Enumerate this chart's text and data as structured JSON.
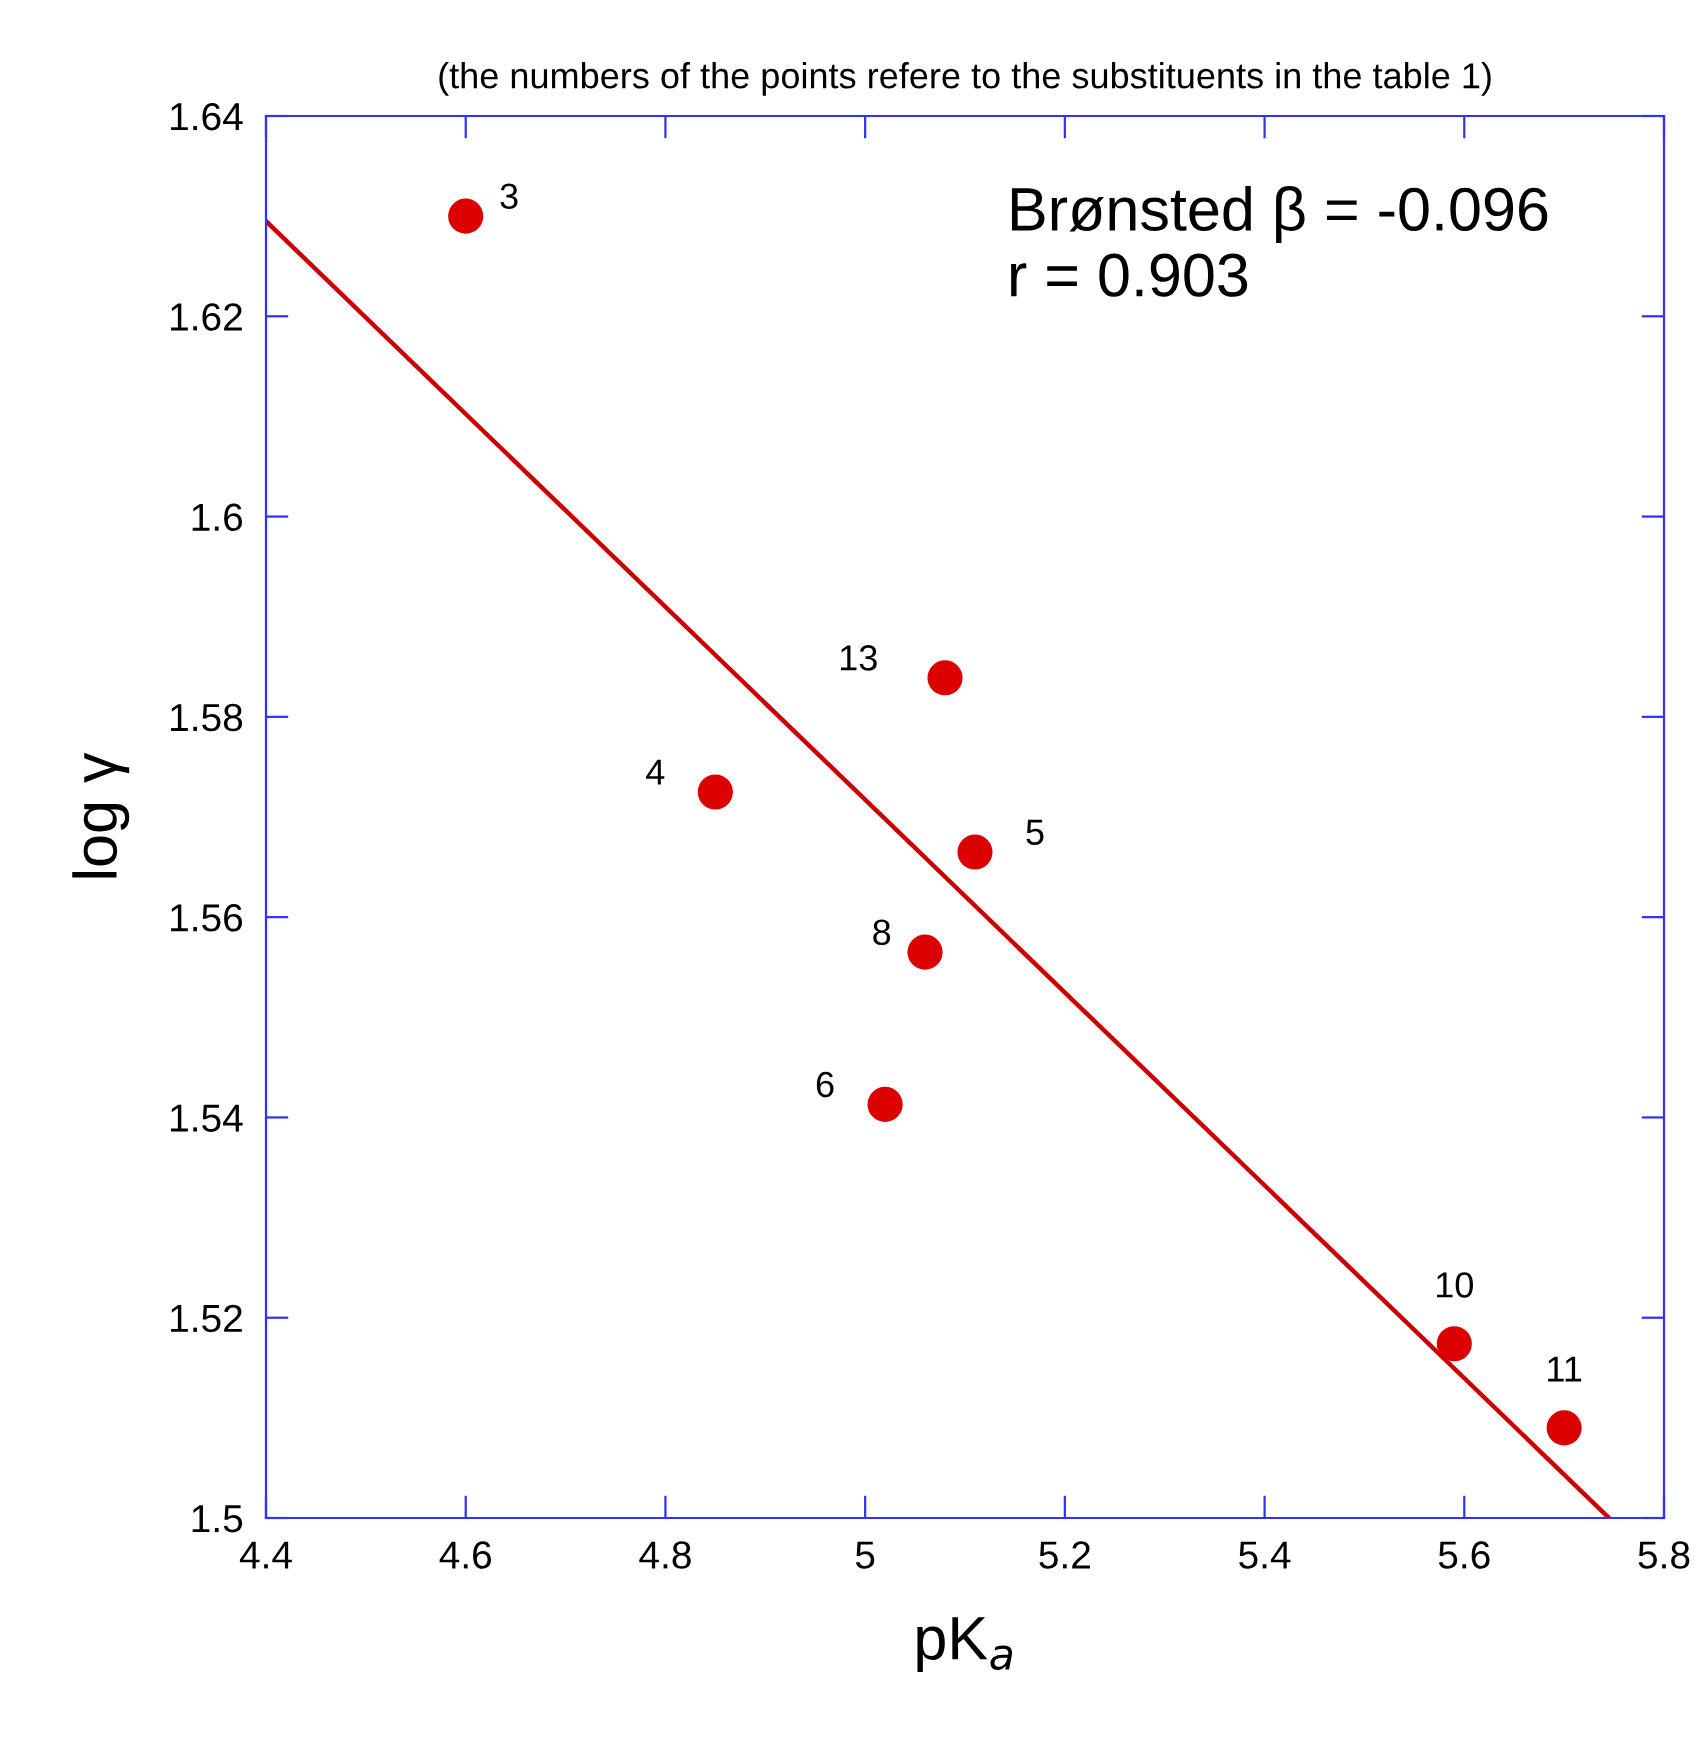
{
  "chart_data": {
    "type": "scatter",
    "title": "(the numbers of the points refere to the substituents in the table 1)",
    "xlabel": "pK$_{a}$",
    "ylabel": "log γ",
    "xlim": [
      4.4,
      5.8
    ],
    "ylim": [
      1.5,
      1.64
    ],
    "xticks": [
      4.4,
      4.6,
      4.8,
      5,
      5.2,
      5.4,
      5.6,
      5.8
    ],
    "yticks": [
      1.5,
      1.52,
      1.54,
      1.56,
      1.58,
      1.6,
      1.62,
      1.64
    ],
    "grid": false,
    "legend": false,
    "series": [
      {
        "marker": "circle",
        "color": "#dd0000",
        "x": [
          4.6,
          4.85,
          5.08,
          5.11,
          5.06,
          5.02,
          5.59,
          5.7
        ],
        "values": [
          1.63,
          1.5725,
          1.5839,
          1.5665,
          1.5565,
          1.5413,
          1.5174,
          1.509
        ]
      },
      {
        "type": "line",
        "color": "#cc0000",
        "x": [
          4.4,
          5.745
        ],
        "values": [
          1.6295,
          1.5
        ],
        "line_style": "solid"
      }
    ],
    "annotations": [
      {
        "text": "3",
        "x": 4.6,
        "y": 1.63
      },
      {
        "text": "4",
        "x": 4.85,
        "y": 1.5725
      },
      {
        "text": "13",
        "x": 5.08,
        "y": 1.5839
      },
      {
        "text": "5",
        "x": 5.11,
        "y": 1.5665
      },
      {
        "text": "8",
        "x": 5.06,
        "y": 1.5565
      },
      {
        "text": "6",
        "x": 5.02,
        "y": 1.5413
      },
      {
        "text": "10",
        "x": 5.59,
        "y": 1.5174
      },
      {
        "text": "11",
        "x": 5.7,
        "y": 1.509
      },
      "Brønsted β = -0.096\nr = 0.903"
    ]
  }
}
